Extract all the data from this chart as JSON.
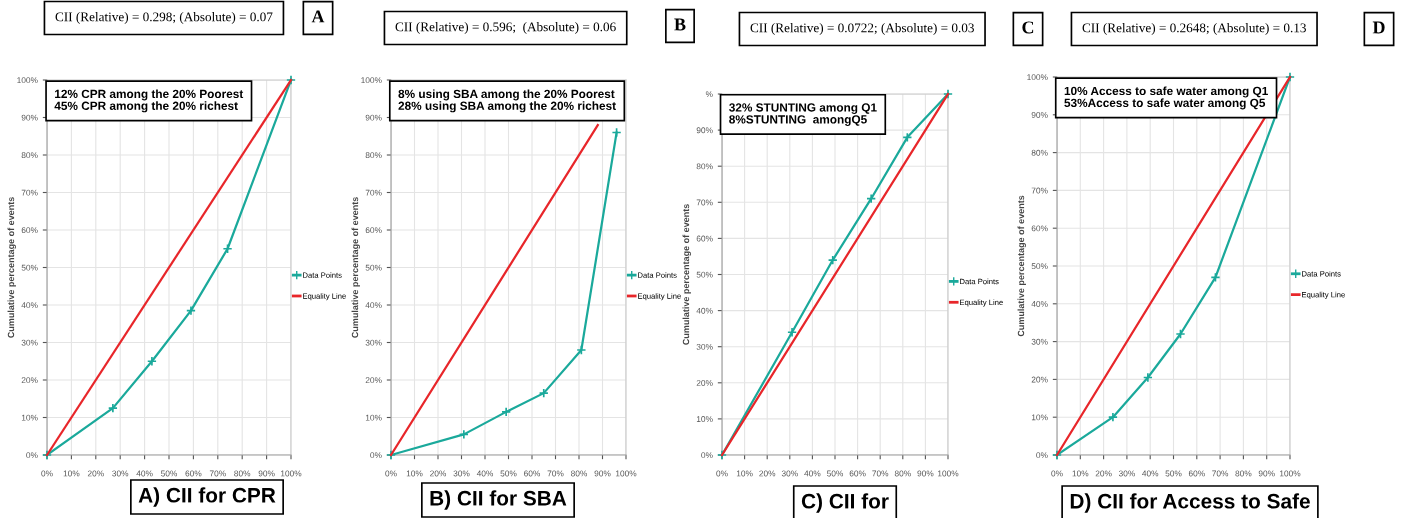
{
  "chart_data": [
    {
      "type": "line",
      "title": "A) CII for CPR",
      "ylabel": "Cumulative percentage of events",
      "annotations": [
        "CII (Relative) = 0.298; (Absolute) = 0.07",
        "A",
        "12% CPR among the 20% Poorest\n45% CPR among the 20% richest"
      ],
      "series": [
        {
          "name": "Data Points",
          "color": "#1aa99b",
          "marker": "cross",
          "x": [
            0,
            27,
            43,
            59,
            74,
            100
          ],
          "values": [
            0,
            12.5,
            25,
            38.5,
            55,
            100
          ]
        },
        {
          "name": "Equality Line",
          "color": "#e8262a",
          "marker": "none",
          "x": [
            0,
            100
          ],
          "values": [
            0,
            100
          ]
        }
      ],
      "xlim": [
        0,
        100
      ],
      "ylim": [
        0,
        100
      ],
      "xticks": [
        {
          "value": 0,
          "label": "0%"
        },
        {
          "value": 10,
          "label": "10%"
        },
        {
          "value": 20,
          "label": "20%"
        },
        {
          "value": 30,
          "label": "30%"
        },
        {
          "value": 40,
          "label": "40%"
        },
        {
          "value": 50,
          "label": "50%"
        },
        {
          "value": 60,
          "label": "60%"
        },
        {
          "value": 70,
          "label": "70%"
        },
        {
          "value": 80,
          "label": "80%"
        },
        {
          "value": 90,
          "label": "90%"
        },
        {
          "value": 100,
          "label": "100%"
        }
      ],
      "yticks": [
        {
          "value": 0,
          "label": "0%"
        },
        {
          "value": 10,
          "label": "10%"
        },
        {
          "value": 20,
          "label": "20%"
        },
        {
          "value": 30,
          "label": "30%"
        },
        {
          "value": 40,
          "label": "40%"
        },
        {
          "value": 50,
          "label": "50%"
        },
        {
          "value": 60,
          "label": "60%"
        },
        {
          "value": 70,
          "label": "70%"
        },
        {
          "value": 80,
          "label": "80%"
        },
        {
          "value": 90,
          "label": "90%"
        },
        {
          "value": 100,
          "label": "100%"
        }
      ],
      "grid": true,
      "legend": "right"
    },
    {
      "type": "line",
      "title": "B) CII for SBA",
      "ylabel": "Cumulative percentage of events",
      "annotations": [
        "CII (Relative) = 0.596;  (Absolute) = 0.06",
        "B",
        "8% using SBA among the 20% Poorest\n28% using SBA among the 20% richest"
      ],
      "series": [
        {
          "name": "Data Points",
          "color": "#1aa99b",
          "marker": "cross",
          "x": [
            0,
            31,
            49,
            65,
            81,
            96
          ],
          "values": [
            0,
            5.5,
            11.5,
            16.5,
            28,
            86
          ]
        },
        {
          "name": "Equality Line",
          "color": "#e8262a",
          "marker": "none",
          "x": [
            0,
            88
          ],
          "values": [
            0,
            88
          ]
        }
      ],
      "xlim": [
        0,
        100
      ],
      "ylim": [
        0,
        100
      ],
      "xticks": [
        {
          "value": 0,
          "label": "0%"
        },
        {
          "value": 10,
          "label": "10%"
        },
        {
          "value": 20,
          "label": "20%"
        },
        {
          "value": 30,
          "label": "30%"
        },
        {
          "value": 40,
          "label": "40%"
        },
        {
          "value": 50,
          "label": "50%"
        },
        {
          "value": 60,
          "label": "60%"
        },
        {
          "value": 70,
          "label": "70%"
        },
        {
          "value": 80,
          "label": "80%"
        },
        {
          "value": 90,
          "label": "90%"
        },
        {
          "value": 100,
          "label": "100%"
        }
      ],
      "yticks": [
        {
          "value": 0,
          "label": "0%"
        },
        {
          "value": 10,
          "label": "10%"
        },
        {
          "value": 20,
          "label": "20%"
        },
        {
          "value": 30,
          "label": "30%"
        },
        {
          "value": 40,
          "label": "40%"
        },
        {
          "value": 50,
          "label": "50%"
        },
        {
          "value": 60,
          "label": "60%"
        },
        {
          "value": 70,
          "label": "70%"
        },
        {
          "value": 80,
          "label": "80%"
        },
        {
          "value": 90,
          "label": "90%"
        },
        {
          "value": 100,
          "label": "100%"
        }
      ],
      "grid": true,
      "legend": "right"
    },
    {
      "type": "line",
      "title": "C) CII for",
      "ylabel": "Cumulative percentage of events",
      "annotations": [
        "CII (Relative) = 0.0722; (Absolute) = 0.03",
        "C",
        "32% STUNTING among Q1\n8%STUNTING  amongQ5"
      ],
      "series": [
        {
          "name": "Data Points",
          "color": "#1aa99b",
          "marker": "cross",
          "x": [
            0,
            31,
            49,
            66,
            82,
            100
          ],
          "values": [
            0,
            34,
            54,
            71,
            88,
            100
          ]
        },
        {
          "name": "Equality Line",
          "color": "#e8262a",
          "marker": "none",
          "x": [
            0,
            100
          ],
          "values": [
            0,
            100
          ]
        }
      ],
      "xlim": [
        0,
        100
      ],
      "ylim": [
        0,
        100
      ],
      "xticks": [
        {
          "value": 0,
          "label": "0%"
        },
        {
          "value": 10,
          "label": "10%"
        },
        {
          "value": 20,
          "label": "20%"
        },
        {
          "value": 30,
          "label": "30%"
        },
        {
          "value": 40,
          "label": "40%"
        },
        {
          "value": 50,
          "label": "50%"
        },
        {
          "value": 60,
          "label": "60%"
        },
        {
          "value": 70,
          "label": "70%"
        },
        {
          "value": 80,
          "label": "80%"
        },
        {
          "value": 90,
          "label": "90%"
        },
        {
          "value": 100,
          "label": "100%"
        }
      ],
      "yticks": [
        {
          "value": 0,
          "label": "0%"
        },
        {
          "value": 10,
          "label": "10%"
        },
        {
          "value": 20,
          "label": "20%"
        },
        {
          "value": 30,
          "label": "30%"
        },
        {
          "value": 40,
          "label": "40%"
        },
        {
          "value": 50,
          "label": "50%"
        },
        {
          "value": 60,
          "label": "60%"
        },
        {
          "value": 70,
          "label": "70%"
        },
        {
          "value": 80,
          "label": "80%"
        },
        {
          "value": 90,
          "label": "90%"
        },
        {
          "value": 100,
          "label": "%"
        }
      ],
      "grid": true,
      "legend": "right"
    },
    {
      "type": "line",
      "title": "D) CII for Access to Safe",
      "ylabel": "Cumulative percentage of events",
      "annotations": [
        "CII (Relative) = 0.2648; (Absolute) = 0.13",
        "D",
        "10% Access to safe water among Q1\n53%Access to safe water among Q5"
      ],
      "series": [
        {
          "name": "Data Points",
          "color": "#1aa99b",
          "marker": "cross",
          "x": [
            0,
            24,
            39,
            53,
            68,
            100
          ],
          "values": [
            0,
            10,
            20.5,
            32,
            47,
            100
          ]
        },
        {
          "name": "Equality Line",
          "color": "#e8262a",
          "marker": "none",
          "x": [
            0,
            100
          ],
          "values": [
            0,
            100
          ]
        }
      ],
      "xlim": [
        0,
        100
      ],
      "ylim": [
        0,
        100
      ],
      "xticks": [
        {
          "value": 0,
          "label": "0%"
        },
        {
          "value": 10,
          "label": "10%"
        },
        {
          "value": 20,
          "label": "20%"
        },
        {
          "value": 30,
          "label": "30%"
        },
        {
          "value": 40,
          "label": "40%"
        },
        {
          "value": 50,
          "label": "50%"
        },
        {
          "value": 60,
          "label": "60%"
        },
        {
          "value": 70,
          "label": "70%"
        },
        {
          "value": 80,
          "label": "80%"
        },
        {
          "value": 90,
          "label": "90%"
        },
        {
          "value": 100,
          "label": "100%"
        }
      ],
      "yticks": [
        {
          "value": 0,
          "label": "0%"
        },
        {
          "value": 10,
          "label": "10%"
        },
        {
          "value": 20,
          "label": "20%"
        },
        {
          "value": 30,
          "label": "30%"
        },
        {
          "value": 40,
          "label": "40%"
        },
        {
          "value": 50,
          "label": "50%"
        },
        {
          "value": 60,
          "label": "60%"
        },
        {
          "value": 70,
          "label": "70%"
        },
        {
          "value": 80,
          "label": "80%"
        },
        {
          "value": 90,
          "label": "90%"
        },
        {
          "value": 100,
          "label": "100%"
        }
      ],
      "grid": true,
      "legend": "right"
    }
  ]
}
